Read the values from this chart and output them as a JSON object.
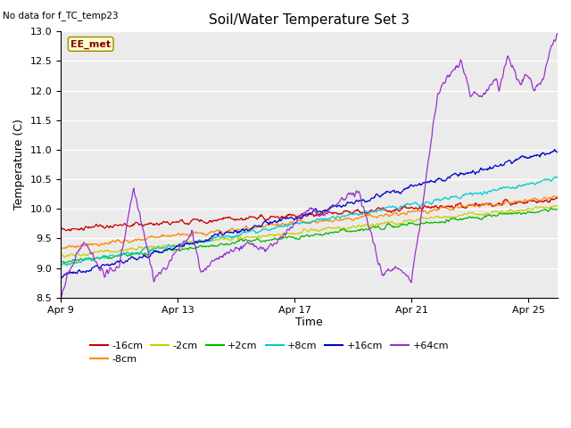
{
  "title": "Soil/Water Temperature Set 3",
  "no_data_text": "No data for f_TC_temp23",
  "xlabel": "Time",
  "ylabel": "Temperature (C)",
  "ylim": [
    8.5,
    13.0
  ],
  "xlim_days": [
    0,
    17
  ],
  "x_ticks_labels": [
    "Apr 9",
    "Apr 13",
    "Apr 17",
    "Apr 21",
    "Apr 25"
  ],
  "x_ticks_pos": [
    0,
    4,
    8,
    12,
    16
  ],
  "legend_label": "EE_met",
  "series_colors": {
    "-16cm": "#cc0000",
    "-8cm": "#ff8800",
    "-2cm": "#cccc00",
    "+2cm": "#00bb00",
    "+8cm": "#00cccc",
    "+16cm": "#0000cc",
    "+64cm": "#9933cc"
  },
  "plot_bg_color": "#ebebeb",
  "title_fontsize": 11,
  "axis_fontsize": 9,
  "tick_fontsize": 8,
  "legend_fontsize": 8
}
